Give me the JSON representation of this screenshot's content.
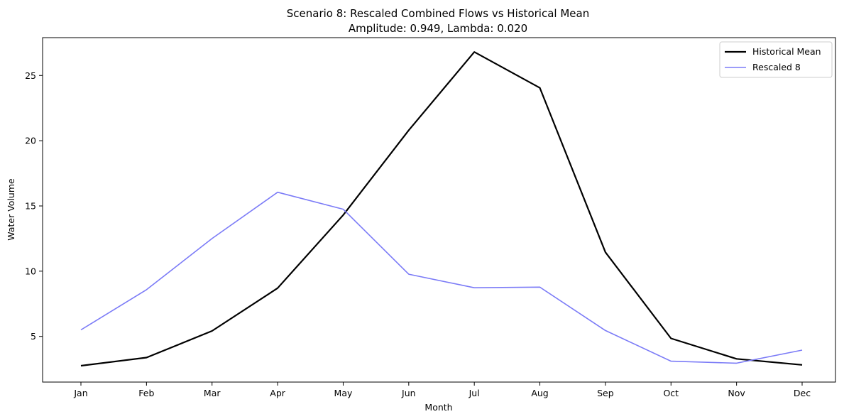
{
  "chart_data": {
    "type": "line",
    "title": "Scenario 8: Rescaled Combined Flows vs Historical Mean",
    "subtitle": "Amplitude: 0.949, Lambda: 0.020",
    "xlabel": "Month",
    "ylabel": "Water Volume",
    "categories": [
      "Jan",
      "Feb",
      "Mar",
      "Apr",
      "May",
      "Jun",
      "Jul",
      "Aug",
      "Sep",
      "Oct",
      "Nov",
      "Dec"
    ],
    "ylim": [
      1.5,
      27.9
    ],
    "yticks": [
      5,
      10,
      15,
      20,
      25
    ],
    "grid": false,
    "legend_position": "top-right",
    "series": [
      {
        "name": "Historical Mean",
        "color": "#000000",
        "values": [
          2.75,
          3.38,
          5.42,
          8.7,
          14.3,
          20.8,
          26.8,
          24.05,
          11.45,
          4.85,
          3.28,
          2.82
        ]
      },
      {
        "name": "Rescaled 8",
        "color": "#7b7bf7",
        "values": [
          5.5,
          8.58,
          12.5,
          16.05,
          14.75,
          9.77,
          8.73,
          8.78,
          5.45,
          3.1,
          2.95,
          3.95
        ]
      }
    ]
  }
}
